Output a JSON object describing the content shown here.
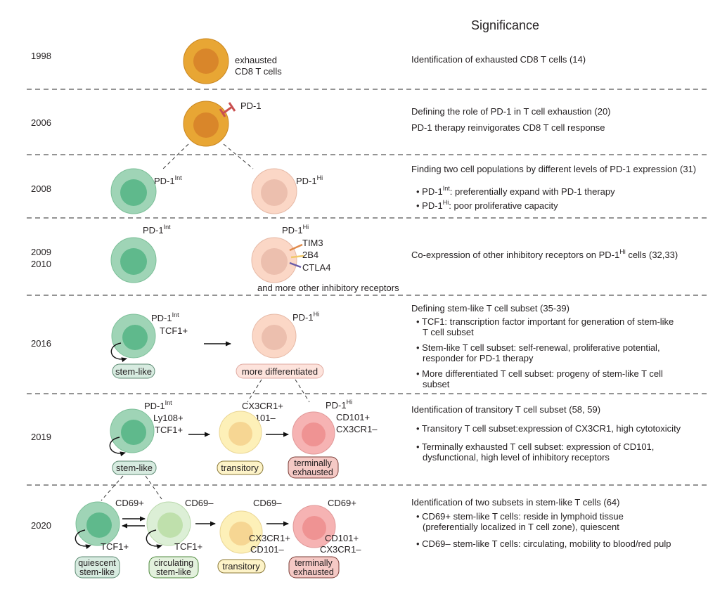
{
  "heading": "Significance",
  "rows": [
    {
      "year": "1998",
      "labels": {
        "cell": "exhausted",
        "cell2": "CD8 T cells"
      },
      "significance": [
        {
          "text": "Identification of exhausted CD8 T cells (14)"
        }
      ]
    },
    {
      "year": "2006",
      "labels": {
        "pd1": "PD-1"
      },
      "significance": [
        {
          "text": "Defining the role of PD-1 in T cell exhaustion (20)"
        },
        {
          "text": "PD-1 therapy reinvigorates CD8 T cell response"
        }
      ]
    },
    {
      "year": "2008",
      "labels": {
        "left": "PD-1",
        "left_sup": "Int",
        "right": "PD-1",
        "right_sup": "Hi"
      },
      "significance": [
        {
          "text": "Finding two cell populations by different levels of PD-1 expression (31)"
        },
        {
          "pre": "• PD-1",
          "sup": "Int",
          "post": ": preferentially expand with PD-1 therapy"
        },
        {
          "pre": "• PD-1",
          "sup": "Hi",
          "post": ": poor proliferative capacity"
        }
      ]
    },
    {
      "year": "2009",
      "year2": "2010",
      "labels": {
        "left": "PD-1",
        "left_sup": "Int",
        "right": "PD-1",
        "right_sup": "Hi",
        "r1": "TIM3",
        "r2": "2B4",
        "r3": "CTLA4",
        "more": "and more other inhibitory receptors"
      },
      "significance": [
        {
          "pre": "Co-expression of other inhibitory receptors on PD-1",
          "sup": "Hi",
          "post": " cells (32,33)"
        }
      ]
    },
    {
      "year": "2016",
      "labels": {
        "left": "PD-1",
        "left_sup": "Int",
        "tcf1": "TCF1+",
        "right": "PD-1",
        "right_sup": "Hi",
        "stem_box": "stem-like",
        "diff_box": "more differentiated"
      },
      "significance": [
        {
          "text": "Defining stem-like T cell subset (35-39)"
        },
        {
          "text": "• TCF1: transcription factor important for generation of stem-like"
        },
        {
          "text": "T cell subset"
        },
        {
          "text": "• Stem-like T cell subset: self-renewal, proliferative potential,"
        },
        {
          "text": "responder for PD-1 therapy"
        },
        {
          "text": "• More differentiated T cell subset: progeny of stem-like T cell"
        },
        {
          "text": "subset"
        }
      ]
    },
    {
      "year": "2019",
      "labels": {
        "left": "PD-1",
        "left_sup": "Int",
        "ly108": "Ly108+",
        "tcf1": "TCF1+",
        "cx3cr1p": "CX3CR1+",
        "cd101m": "CD101–",
        "right": "PD-1",
        "right_sup": "Hi",
        "cd101p": "CD101+",
        "cx3cr1m": "CX3CR1–",
        "stem_box": "stem-like",
        "trans_box": "transitory",
        "term_box1": "terminally",
        "term_box2": "exhausted"
      },
      "significance": [
        {
          "text": "Identification of transitory T cell subset (58, 59)"
        },
        {
          "text": "• Transitory T cell subset:expression of CX3CR1, high cytotoxicity"
        },
        {
          "text": "• Terminally exhausted T cell subset: expression of CD101,"
        },
        {
          "text": "dysfunctional, high level of inhibitory receptors"
        }
      ]
    },
    {
      "year": "2020",
      "labels": {
        "cd69p": "CD69+",
        "cd69m": "CD69–",
        "tcf1a": "TCF1+",
        "tcf1b": "TCF1+",
        "cd69m2": "CD69–",
        "cx3cr1p": "CX3CR1+",
        "cd101m": "CD101–",
        "cd69p2": "CD69+",
        "cd101p": "CD101+",
        "cx3cr1m": "CX3CR1–",
        "q1": "quiescent",
        "q2": "stem-like",
        "c1": "circulating",
        "c2": "stem-like",
        "trans_box": "transitory",
        "term_box1": "terminally",
        "term_box2": "exhausted"
      },
      "significance": [
        {
          "text": "Identification of two subsets in stem-like T cells (64)"
        },
        {
          "text": "• CD69+ stem-like T cells: reside in lymphoid tissue"
        },
        {
          "text": "(preferentially localized in T cell zone), quiescent"
        },
        {
          "text": "• CD69– stem-like T cells: circulating, mobility to blood/red pulp"
        }
      ]
    }
  ],
  "colors": {
    "exhausted_outer": "#e8a634",
    "exhausted_inner": "#d9862a",
    "stem_outer": "#9fd4b6",
    "stem_inner": "#5fb98c",
    "pdhi_outer": "#fbd7c6",
    "pdhi_inner": "#ecbfae",
    "transitory_outer": "#fdf0b8",
    "transitory_inner": "#f6d693",
    "terminal_outer": "#f6b3b3",
    "terminal_inner": "#ef9393",
    "circulating_outer": "#dcefd6",
    "circulating_inner": "#bfe0ac",
    "receptor": "#c95050"
  }
}
